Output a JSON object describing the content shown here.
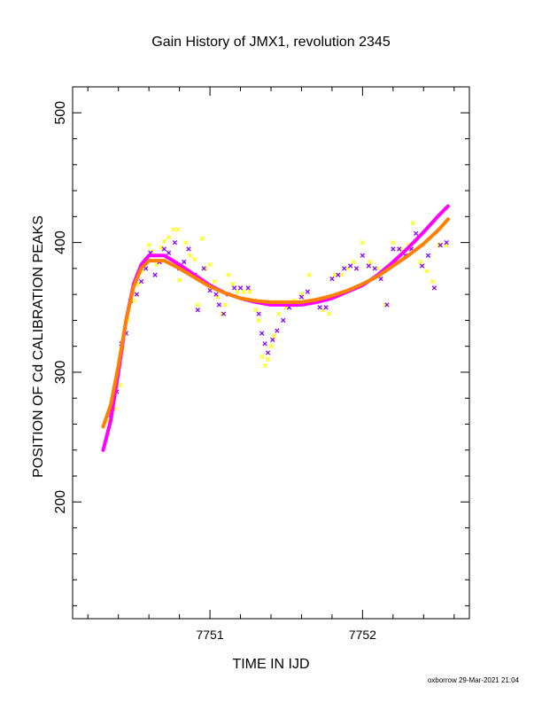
{
  "chart_data": {
    "type": "scatter",
    "title": "Gain History of JMX1, revolution 2345",
    "xlabel": "TIME IN IJD",
    "ylabel": "POSITION OF Cd CALIBRATION PEAKS",
    "xlim": [
      7750.1,
      7752.7
    ],
    "ylim": [
      110,
      520
    ],
    "x_ticks": [
      {
        "value": 7751,
        "label": "7751"
      },
      {
        "value": 7752,
        "label": "7752"
      }
    ],
    "y_ticks": [
      {
        "value": 200,
        "label": "200"
      },
      {
        "value": 300,
        "label": "300"
      },
      {
        "value": 400,
        "label": "400"
      },
      {
        "value": 500,
        "label": "500"
      }
    ],
    "grid": false,
    "legend": "none",
    "series": [
      {
        "marker": "x",
        "color": "#ffff00",
        "points": [
          [
            7750.34,
            263
          ],
          [
            7750.38,
            272
          ],
          [
            7750.41,
            290
          ],
          [
            7750.43,
            318
          ],
          [
            7750.46,
            340
          ],
          [
            7750.5,
            355
          ],
          [
            7750.53,
            368
          ],
          [
            7750.55,
            378
          ],
          [
            7750.58,
            387
          ],
          [
            7750.6,
            398
          ],
          [
            7750.62,
            393
          ],
          [
            7750.65,
            383
          ],
          [
            7750.68,
            396
          ],
          [
            7750.7,
            401
          ],
          [
            7750.73,
            404
          ],
          [
            7750.76,
            410
          ],
          [
            7750.79,
            410
          ],
          [
            7750.8,
            371
          ],
          [
            7750.84,
            400
          ],
          [
            7750.87,
            390
          ],
          [
            7750.9,
            387
          ],
          [
            7750.92,
            352
          ],
          [
            7750.95,
            403
          ],
          [
            7750.97,
            380
          ],
          [
            7751.0,
            383
          ],
          [
            7751.03,
            370
          ],
          [
            7751.05,
            358
          ],
          [
            7751.08,
            345
          ],
          [
            7751.1,
            352
          ],
          [
            7751.12,
            375
          ],
          [
            7751.15,
            368
          ],
          [
            7751.18,
            362
          ],
          [
            7751.22,
            362
          ],
          [
            7751.26,
            362
          ],
          [
            7751.3,
            348
          ],
          [
            7751.32,
            340
          ],
          [
            7751.34,
            312
          ],
          [
            7751.36,
            305
          ],
          [
            7751.38,
            310
          ],
          [
            7751.4,
            320
          ],
          [
            7751.42,
            328
          ],
          [
            7751.45,
            345
          ],
          [
            7751.5,
            350
          ],
          [
            7751.55,
            355
          ],
          [
            7751.6,
            360
          ],
          [
            7751.65,
            375
          ],
          [
            7751.7,
            355
          ],
          [
            7751.74,
            348
          ],
          [
            7751.78,
            345
          ],
          [
            7751.82,
            375
          ],
          [
            7751.86,
            375
          ],
          [
            7751.9,
            380
          ],
          [
            7751.94,
            385
          ],
          [
            7752.0,
            400
          ],
          [
            7752.05,
            385
          ],
          [
            7752.1,
            380
          ],
          [
            7752.15,
            352
          ],
          [
            7752.2,
            400
          ],
          [
            7752.25,
            395
          ],
          [
            7752.3,
            398
          ],
          [
            7752.33,
            415
          ],
          [
            7752.38,
            385
          ],
          [
            7752.42,
            378
          ],
          [
            7752.46,
            370
          ],
          [
            7752.5,
            398
          ],
          [
            7752.55,
            398
          ]
        ]
      },
      {
        "marker": "x",
        "color": "#8a00ff",
        "points": [
          [
            7750.35,
            267
          ],
          [
            7750.39,
            285
          ],
          [
            7750.42,
            322
          ],
          [
            7750.45,
            330
          ],
          [
            7750.48,
            355
          ],
          [
            7750.52,
            360
          ],
          [
            7750.55,
            370
          ],
          [
            7750.58,
            380
          ],
          [
            7750.61,
            392
          ],
          [
            7750.64,
            375
          ],
          [
            7750.67,
            385
          ],
          [
            7750.7,
            395
          ],
          [
            7750.73,
            392
          ],
          [
            7750.77,
            400
          ],
          [
            7750.8,
            380
          ],
          [
            7750.83,
            385
          ],
          [
            7750.86,
            395
          ],
          [
            7750.9,
            375
          ],
          [
            7750.92,
            348
          ],
          [
            7750.96,
            380
          ],
          [
            7751.0,
            363
          ],
          [
            7751.04,
            360
          ],
          [
            7751.06,
            352
          ],
          [
            7751.09,
            345
          ],
          [
            7751.12,
            360
          ],
          [
            7751.16,
            365
          ],
          [
            7751.2,
            365
          ],
          [
            7751.25,
            365
          ],
          [
            7751.29,
            355
          ],
          [
            7751.32,
            345
          ],
          [
            7751.34,
            330
          ],
          [
            7751.36,
            322
          ],
          [
            7751.38,
            315
          ],
          [
            7751.41,
            325
          ],
          [
            7751.44,
            332
          ],
          [
            7751.48,
            340
          ],
          [
            7751.52,
            350
          ],
          [
            7751.56,
            352
          ],
          [
            7751.6,
            358
          ],
          [
            7751.64,
            362
          ],
          [
            7751.68,
            355
          ],
          [
            7751.72,
            350
          ],
          [
            7751.76,
            350
          ],
          [
            7751.8,
            372
          ],
          [
            7751.84,
            375
          ],
          [
            7751.88,
            380
          ],
          [
            7751.92,
            382
          ],
          [
            7751.96,
            380
          ],
          [
            7752.0,
            390
          ],
          [
            7752.04,
            382
          ],
          [
            7752.08,
            380
          ],
          [
            7752.12,
            372
          ],
          [
            7752.16,
            352
          ],
          [
            7752.2,
            395
          ],
          [
            7752.24,
            395
          ],
          [
            7752.28,
            390
          ],
          [
            7752.32,
            395
          ],
          [
            7752.35,
            407
          ],
          [
            7752.39,
            382
          ],
          [
            7752.43,
            390
          ],
          [
            7752.47,
            365
          ],
          [
            7752.51,
            398
          ],
          [
            7752.55,
            400
          ]
        ]
      }
    ],
    "curves": [
      {
        "color": "#ff00ff",
        "x": [
          7750.3,
          7750.35,
          7750.4,
          7750.45,
          7750.5,
          7750.55,
          7750.6,
          7750.7,
          7750.8,
          7750.9,
          7751.0,
          7751.1,
          7751.2,
          7751.3,
          7751.4,
          7751.5,
          7751.6,
          7751.7,
          7751.8,
          7751.9,
          7752.0,
          7752.1,
          7752.2,
          7752.3,
          7752.4,
          7752.5,
          7752.56
        ],
        "y": [
          240,
          263,
          300,
          340,
          368,
          383,
          390,
          390,
          383,
          375,
          367,
          361,
          357,
          354,
          352,
          352,
          352,
          354,
          357,
          362,
          367,
          375,
          385,
          396,
          408,
          421,
          428
        ]
      },
      {
        "color": "#ff8000",
        "x": [
          7750.3,
          7750.35,
          7750.4,
          7750.45,
          7750.5,
          7750.55,
          7750.6,
          7750.7,
          7750.8,
          7750.9,
          7751.0,
          7751.1,
          7751.2,
          7751.3,
          7751.4,
          7751.5,
          7751.6,
          7751.7,
          7751.8,
          7751.9,
          7752.0,
          7752.1,
          7752.2,
          7752.3,
          7752.4,
          7752.5,
          7752.56
        ],
        "y": [
          258,
          275,
          305,
          340,
          366,
          380,
          386,
          386,
          380,
          373,
          366,
          361,
          357,
          355,
          354,
          354,
          354,
          356,
          359,
          363,
          368,
          374,
          382,
          390,
          399,
          410,
          418
        ]
      }
    ]
  },
  "footer": {
    "stamp": "oxborrow 29-Mar-2021 21:04"
  }
}
